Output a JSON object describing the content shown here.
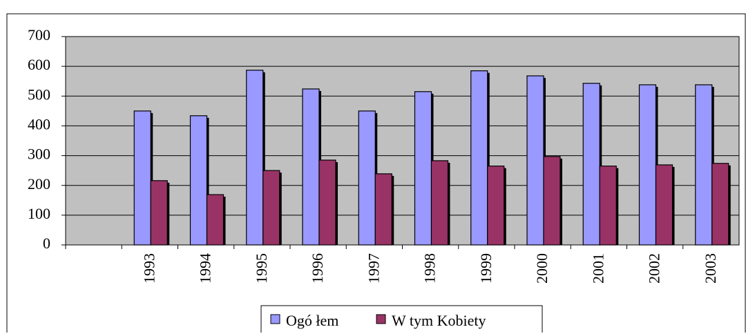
{
  "chart_data": {
    "type": "bar",
    "categories": [
      null,
      "1993",
      "1994",
      "1995",
      "1996",
      "1997",
      "1998",
      "1999",
      "2000",
      "2001",
      "2002",
      "2003"
    ],
    "series": [
      {
        "name": "Ogó łem",
        "color": "#9999ff",
        "values": [
          null,
          450,
          434,
          587,
          524,
          450,
          515,
          585,
          568,
          543,
          538,
          538
        ]
      },
      {
        "name": "W tym Kobiety",
        "color": "#993366",
        "values": [
          null,
          216,
          169,
          250,
          285,
          239,
          283,
          265,
          297,
          265,
          269,
          274
        ]
      }
    ],
    "ylim": [
      0,
      700
    ],
    "yticks": [
      0,
      100,
      200,
      300,
      400,
      500,
      600,
      700
    ],
    "grid": true,
    "legend": "bottom"
  }
}
